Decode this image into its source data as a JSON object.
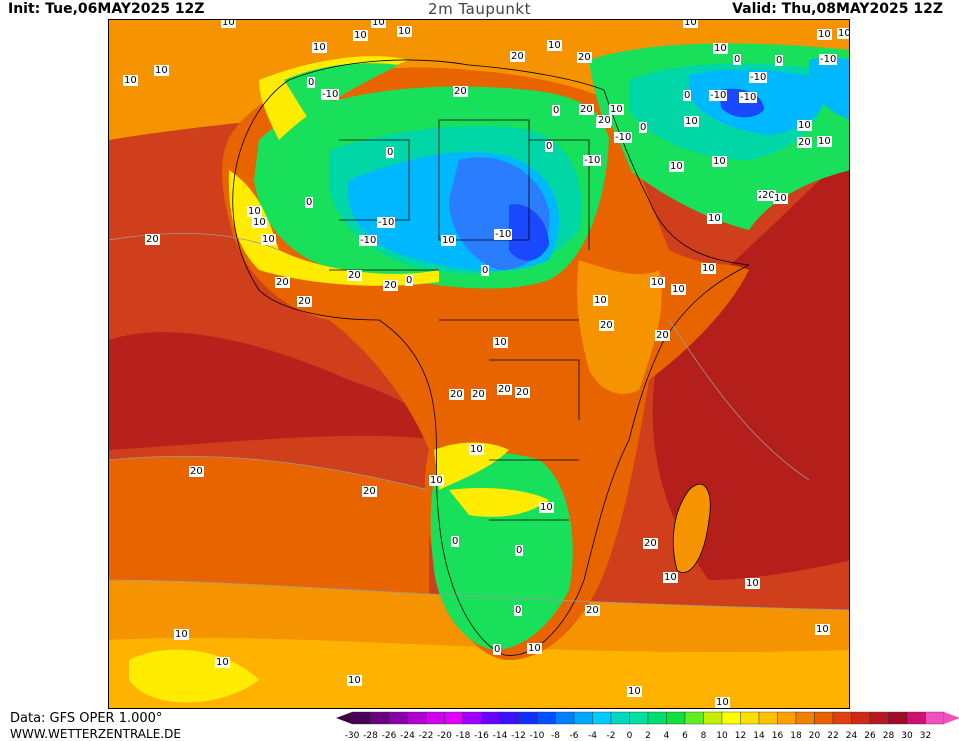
{
  "header": {
    "init": "Init: Tue,06MAY2025 12Z",
    "title": "2m Taupunkt",
    "valid": "Valid: Thu,08MAY2025 12Z"
  },
  "footer": {
    "data_source": "Data: GFS OPER 1.000°",
    "website": "WWW.WETTERZENTRALE.DE"
  },
  "legend": {
    "ticks": [
      "-30",
      "-28",
      "-26",
      "-24",
      "-22",
      "-20",
      "-18",
      "-16",
      "-14",
      "-12",
      "-10",
      "-8",
      "-6",
      "-4",
      "-2",
      "0",
      "2",
      "4",
      "6",
      "8",
      "10",
      "12",
      "14",
      "16",
      "18",
      "20",
      "22",
      "24",
      "26",
      "28",
      "30",
      "32"
    ],
    "colors": [
      "#4a0055",
      "#6a0080",
      "#8a00a8",
      "#b000d0",
      "#d000f0",
      "#e000ff",
      "#a000ff",
      "#6a00ff",
      "#3a10ff",
      "#1030ff",
      "#0050ff",
      "#0080ff",
      "#00a8ff",
      "#00ccff",
      "#00d8c0",
      "#00e0a0",
      "#00e070",
      "#10e040",
      "#60f020",
      "#c0f000",
      "#ffff00",
      "#ffe000",
      "#ffc000",
      "#ffa000",
      "#f08000",
      "#e86000",
      "#e04010",
      "#d02818",
      "#b81820",
      "#a00c28",
      "#d01070",
      "#f050c0"
    ]
  },
  "map_colors": {
    "ocean_warm": "#cf3f1b",
    "ocean_hot": "#b8201b",
    "mid": "#e86400",
    "orange": "#f59400",
    "light_orange": "#ffb300",
    "yellow": "#ffec00",
    "lime": "#c8f000",
    "green": "#19e05a",
    "teal": "#00d6a6",
    "cyan": "#00b8ff",
    "blue": "#2a7dff",
    "deep_blue": "#1a48ff"
  },
  "contour_labels": [
    {
      "id": "l01",
      "text": "10"
    },
    {
      "id": "l02",
      "text": "10"
    },
    {
      "id": "l03",
      "text": "10"
    },
    {
      "id": "l04",
      "text": "10"
    },
    {
      "id": "l05",
      "text": "10"
    },
    {
      "id": "l06",
      "text": "10"
    },
    {
      "id": "l07",
      "text": "0"
    },
    {
      "id": "l08",
      "text": "-10"
    },
    {
      "id": "l09",
      "text": "0"
    },
    {
      "id": "l10",
      "text": "0"
    },
    {
      "id": "l11",
      "text": "10"
    },
    {
      "id": "l12",
      "text": "10"
    },
    {
      "id": "l13",
      "text": "10"
    },
    {
      "id": "l14",
      "text": "10"
    },
    {
      "id": "l15",
      "text": "-10"
    },
    {
      "id": "l16",
      "text": "-10"
    },
    {
      "id": "l17",
      "text": "10"
    },
    {
      "id": "l18",
      "text": "-10"
    },
    {
      "id": "l19",
      "text": "0"
    },
    {
      "id": "l20",
      "text": "20"
    },
    {
      "id": "l21",
      "text": "20"
    },
    {
      "id": "l22",
      "text": "20"
    },
    {
      "id": "l23",
      "text": "20"
    },
    {
      "id": "l24",
      "text": "20"
    },
    {
      "id": "l25",
      "text": "10"
    },
    {
      "id": "l26",
      "text": "0"
    },
    {
      "id": "l27",
      "text": "10"
    },
    {
      "id": "l28",
      "text": "10"
    },
    {
      "id": "l29",
      "text": "20"
    },
    {
      "id": "l30",
      "text": "20"
    },
    {
      "id": "l31",
      "text": "20"
    },
    {
      "id": "l32",
      "text": "20"
    },
    {
      "id": "l33",
      "text": "20"
    },
    {
      "id": "l34",
      "text": "20"
    },
    {
      "id": "l35",
      "text": "10"
    },
    {
      "id": "l36",
      "text": "10"
    },
    {
      "id": "l37",
      "text": "0"
    },
    {
      "id": "l38",
      "text": "0"
    },
    {
      "id": "l39",
      "text": "0"
    },
    {
      "id": "l40",
      "text": "0"
    },
    {
      "id": "l41",
      "text": "10"
    },
    {
      "id": "l42",
      "text": "10"
    },
    {
      "id": "l43",
      "text": "20"
    },
    {
      "id": "l44",
      "text": "20"
    },
    {
      "id": "l45",
      "text": "20"
    },
    {
      "id": "l46",
      "text": "20"
    },
    {
      "id": "l47",
      "text": "10"
    },
    {
      "id": "l48",
      "text": "10"
    },
    {
      "id": "l49",
      "text": "10"
    },
    {
      "id": "l50",
      "text": "10"
    },
    {
      "id": "l51",
      "text": "10"
    },
    {
      "id": "l52",
      "text": "10"
    },
    {
      "id": "l53",
      "text": "10"
    },
    {
      "id": "l54",
      "text": "10"
    },
    {
      "id": "l55",
      "text": "0"
    },
    {
      "id": "l56",
      "text": "10"
    },
    {
      "id": "l57",
      "text": "-10"
    },
    {
      "id": "l58",
      "text": "-10"
    },
    {
      "id": "l59",
      "text": "0"
    },
    {
      "id": "l60",
      "text": "10"
    },
    {
      "id": "l61",
      "text": "20"
    },
    {
      "id": "l62",
      "text": "-10"
    },
    {
      "id": "l63",
      "text": "0"
    },
    {
      "id": "l64",
      "text": "10"
    },
    {
      "id": "l65",
      "text": "-10"
    },
    {
      "id": "l66",
      "text": "0"
    },
    {
      "id": "l67",
      "text": "0"
    },
    {
      "id": "l68",
      "text": "20"
    },
    {
      "id": "l69",
      "text": "10"
    },
    {
      "id": "l70",
      "text": "20"
    },
    {
      "id": "l71",
      "text": "10"
    },
    {
      "id": "l72",
      "text": "10"
    },
    {
      "id": "l73",
      "text": "10"
    },
    {
      "id": "l74",
      "text": "20"
    },
    {
      "id": "l75",
      "text": "20"
    },
    {
      "id": "l76",
      "text": "20"
    },
    {
      "id": "l77",
      "text": "20"
    },
    {
      "id": "l78",
      "text": "10"
    },
    {
      "id": "l79",
      "text": "20"
    },
    {
      "id": "l80",
      "text": "10"
    },
    {
      "id": "l81",
      "text": "10"
    },
    {
      "id": "l82",
      "text": "10"
    },
    {
      "id": "l83",
      "text": "10"
    },
    {
      "id": "l84",
      "text": "10"
    },
    {
      "id": "l85",
      "text": "10"
    },
    {
      "id": "l86",
      "text": "-10"
    },
    {
      "id": "l87",
      "text": "-10"
    },
    {
      "id": "l88",
      "text": "0"
    },
    {
      "id": "l89",
      "text": "10"
    },
    {
      "id": "l90",
      "text": "10"
    }
  ]
}
